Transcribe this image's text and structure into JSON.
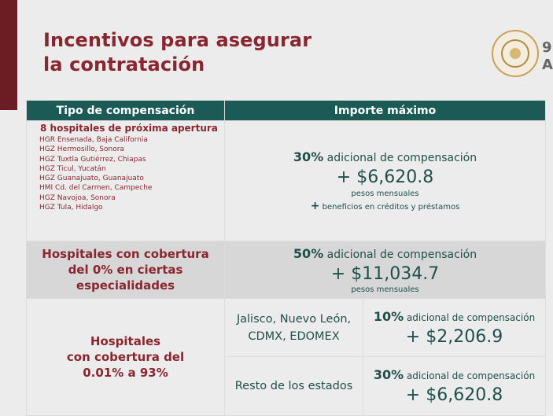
{
  "title_line1": "Incentivos para asegurar",
  "title_line2": "la contratación",
  "edge_text": "9\nA",
  "colors": {
    "maroon": "#8a2630",
    "teal": "#1b5a55",
    "gold": "#c9a15a"
  },
  "table": {
    "col1_header": "Tipo de compensación",
    "col2_header": "Importe máximo",
    "row1": {
      "title": "8 hospitales de próxima apertura",
      "hospitals": [
        "HGR Ensenada, Baja California",
        "HGZ Hermosillo, Sonora",
        "HGZ Tuxtla Gutiérrez, Chiapas",
        "HGZ Ticul, Yucatán",
        "HGZ Guanajuato, Guanajuato",
        "HMI Cd. del Carmen, Campeche",
        "HGZ Navojoa, Sonora",
        "HGZ Tula, Hidalgo"
      ],
      "pct": "30%",
      "pct_text": "adicional de compensación",
      "amount": "+ $6,620.8",
      "unit": "pesos mensuales",
      "benefit_plus": "+",
      "benefit": "beneficios en créditos y préstamos"
    },
    "row2": {
      "label_line1": "Hospitales con cobertura",
      "label_line2": "del 0% en ciertas",
      "label_line3": "especialidades",
      "pct": "50%",
      "pct_text": "adicional de compensación",
      "amount": "+ $11,034.7",
      "unit": "pesos mensuales"
    },
    "row3": {
      "label_line1": "Hospitales",
      "label_line2": "con cobertura del",
      "label_line3": "0.01% a 93%",
      "sub1": {
        "states_line1": "Jalisco, Nuevo León,",
        "states_line2": "CDMX, EDOMEX",
        "pct": "10%",
        "pct_text": "adicional de compensación",
        "amount": "+ $2,206.9"
      },
      "sub2": {
        "states": "Resto de los estados",
        "pct": "30%",
        "pct_text": "adicional de compensación",
        "amount": "+ $6,620.8"
      }
    }
  }
}
